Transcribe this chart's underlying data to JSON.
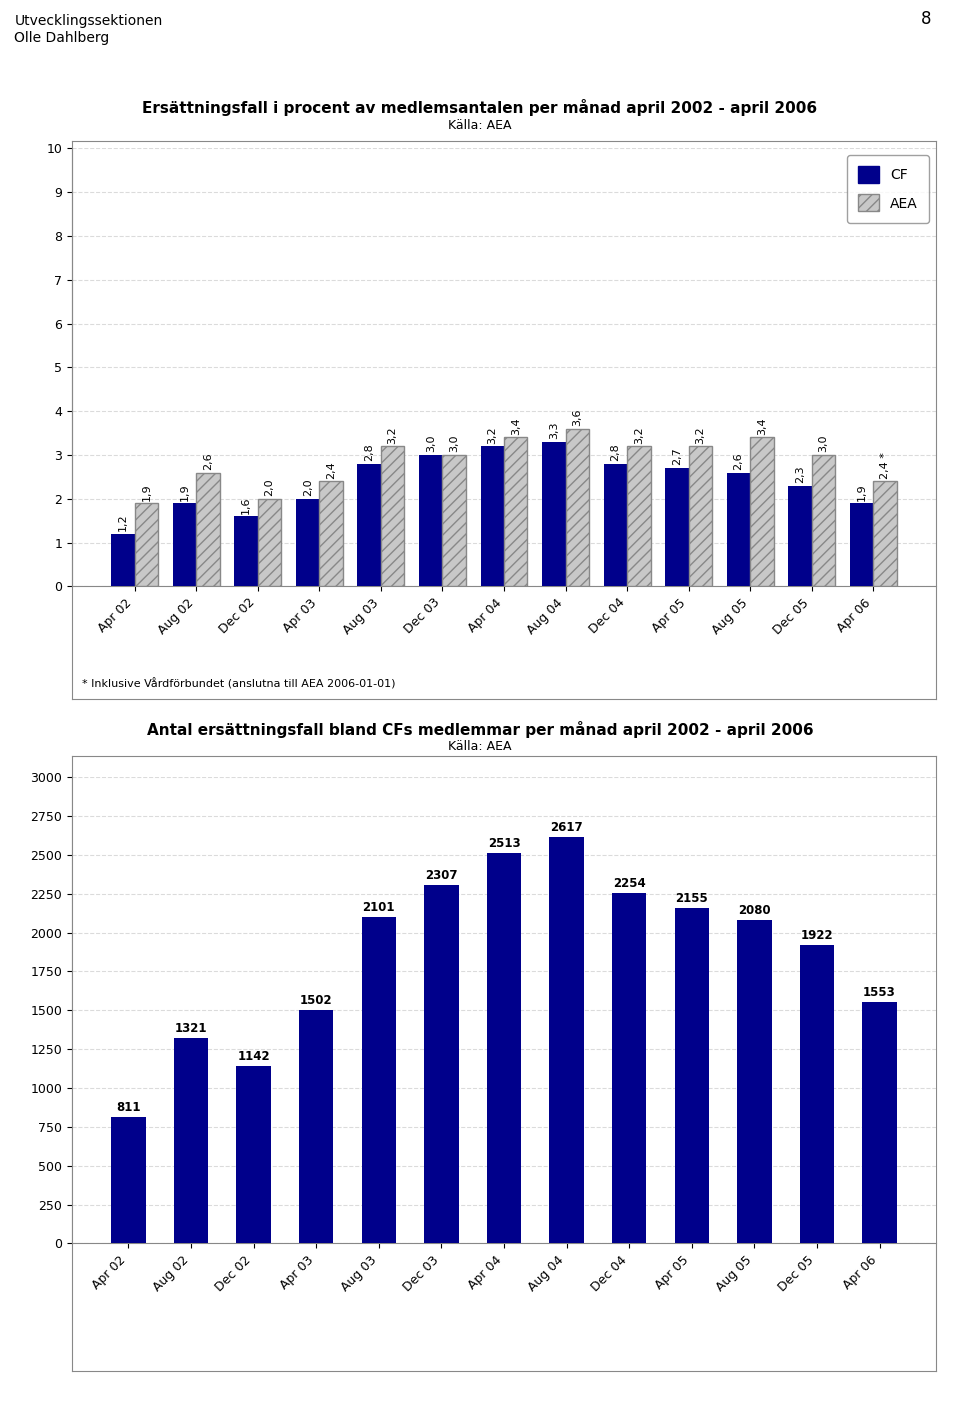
{
  "page_number": "8",
  "header_line1": "Utvecklingssektionen",
  "header_line2": "Olle Dahlberg",
  "chart1": {
    "title": "Ersättningsfall i procent av medlemsantalen per månad april 2002 - april 2006",
    "subtitle": "Källa: AEA",
    "categories": [
      "Apr 02",
      "Aug 02",
      "Dec 02",
      "Apr 03",
      "Aug 03",
      "Dec 03",
      "Apr 04",
      "Aug 04",
      "Dec 04",
      "Apr 05",
      "Aug 05",
      "Dec 05",
      "Apr 06"
    ],
    "cf_values": [
      1.2,
      1.9,
      1.6,
      2.0,
      2.8,
      3.0,
      3.2,
      3.3,
      2.8,
      2.7,
      2.6,
      2.3,
      1.9
    ],
    "aea_values": [
      1.9,
      2.6,
      2.0,
      2.4,
      3.2,
      3.0,
      3.4,
      3.6,
      3.2,
      3.2,
      3.4,
      3.0,
      2.4
    ],
    "cf_color": "#00008B",
    "aea_color": "#C8C8C8",
    "ylim": [
      0,
      10
    ],
    "yticks": [
      0,
      1,
      2,
      3,
      4,
      5,
      6,
      7,
      8,
      9,
      10
    ],
    "footnote": "* Inklusive Vårdförbundet (anslutna till AEA 2006-01-01)"
  },
  "chart2": {
    "title": "Antal ersättningsfall bland CFs medlemmar per månad april 2002 - april 2006",
    "subtitle": "Källa: AEA",
    "categories": [
      "Apr 02",
      "Aug 02",
      "Dec 02",
      "Apr 03",
      "Aug 03",
      "Dec 03",
      "Apr 04",
      "Aug 04",
      "Dec 04",
      "Apr 05",
      "Aug 05",
      "Dec 05",
      "Apr 06"
    ],
    "values": [
      811,
      1321,
      1142,
      1502,
      2101,
      2307,
      2513,
      2617,
      2254,
      2155,
      2080,
      1922,
      1553
    ],
    "bar_color": "#00008B",
    "ylim": [
      0,
      3000
    ],
    "yticks": [
      0,
      250,
      500,
      750,
      1000,
      1250,
      1500,
      1750,
      2000,
      2250,
      2500,
      2750,
      3000
    ]
  }
}
